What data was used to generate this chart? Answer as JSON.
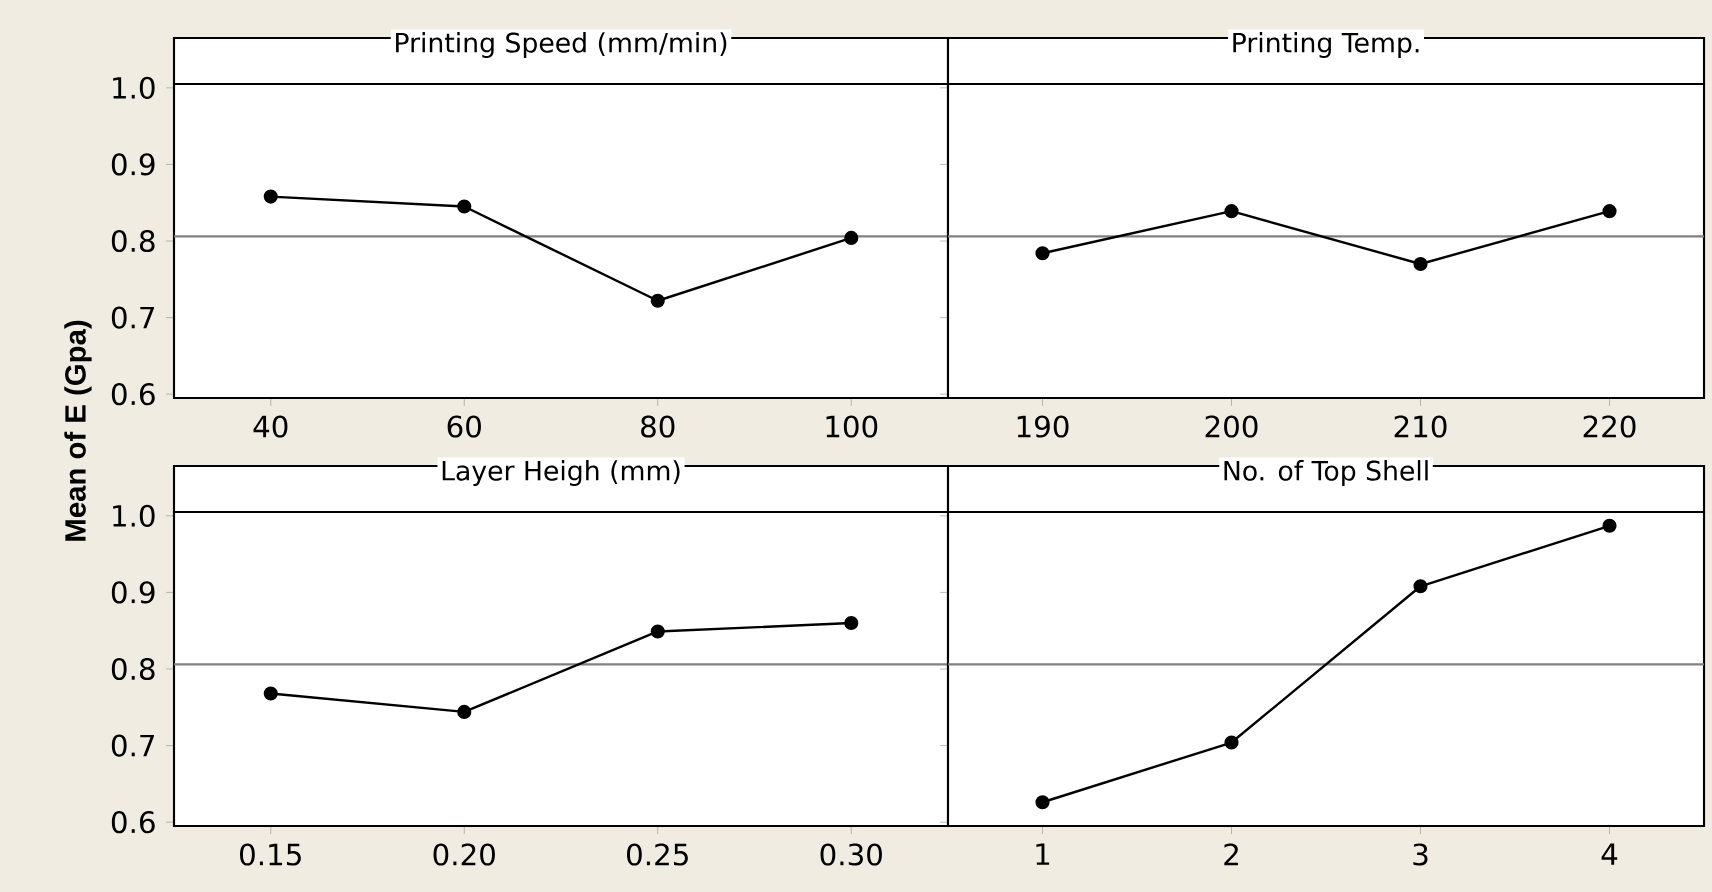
{
  "chart_data": [
    {
      "type": "line",
      "title": "Printing Speed (mm/min)",
      "ylabel": "Mean of E (Gpa)",
      "x": [
        40,
        60,
        80,
        100
      ],
      "series": [
        {
          "color": "#000000",
          "values": [
            0.858,
            0.845,
            0.722,
            0.804
          ]
        }
      ],
      "xlim": [
        30,
        110
      ],
      "xticks": [
        40,
        60,
        80,
        100
      ],
      "ylim": [
        0.595,
        1.005
      ],
      "yticks": [
        0.6,
        0.7,
        0.8,
        0.9,
        {
          "value": 1.0,
          "label": "1.0"
        }
      ],
      "ref_lines": [
        {
          "axis": "y",
          "value": 0.806,
          "color": "#808080"
        }
      ],
      "marker": "circle",
      "grid": false
    },
    {
      "type": "line",
      "title": "Printing Temp.",
      "x": [
        190,
        200,
        210,
        220
      ],
      "series": [
        {
          "color": "#000000",
          "values": [
            0.784,
            0.839,
            0.77,
            0.839
          ]
        }
      ],
      "xlim": [
        185,
        225
      ],
      "xticks": [
        190,
        200,
        210,
        220
      ],
      "ylim": [
        0.595,
        1.005
      ],
      "tick_labels": "x",
      "ref_lines": [
        {
          "axis": "y",
          "value": 0.806,
          "color": "#808080"
        }
      ],
      "marker": "circle",
      "grid": false
    },
    {
      "type": "line",
      "title": "Layer Heigh (mm)",
      "x": [
        0.15,
        0.2,
        0.25,
        0.3
      ],
      "series": [
        {
          "color": "#000000",
          "values": [
            0.768,
            0.744,
            0.849,
            0.86
          ]
        }
      ],
      "xlim": [
        0.125,
        0.325
      ],
      "xticks": [
        0.15,
        {
          "value": 0.2,
          "label": "0.20"
        },
        0.25,
        {
          "value": 0.3,
          "label": "0.30"
        }
      ],
      "ylim": [
        0.595,
        1.005
      ],
      "yticks": [
        0.6,
        0.7,
        0.8,
        0.9,
        {
          "value": 1.0,
          "label": "1.0"
        }
      ],
      "ref_lines": [
        {
          "axis": "y",
          "value": 0.806,
          "color": "#808080"
        }
      ],
      "marker": "circle",
      "grid": false
    },
    {
      "type": "line",
      "title": "No. of Top Shell",
      "x": [
        1,
        2,
        3,
        4
      ],
      "series": [
        {
          "color": "#000000",
          "values": [
            0.626,
            0.704,
            0.908,
            0.987
          ]
        }
      ],
      "xlim": [
        0.5,
        4.5
      ],
      "xticks": [
        1,
        2,
        3,
        4
      ],
      "ylim": [
        0.595,
        1.005
      ],
      "tick_labels": "x",
      "ref_lines": [
        {
          "axis": "y",
          "value": 0.806,
          "color": "#808080"
        }
      ],
      "marker": "circle",
      "grid": false
    }
  ]
}
